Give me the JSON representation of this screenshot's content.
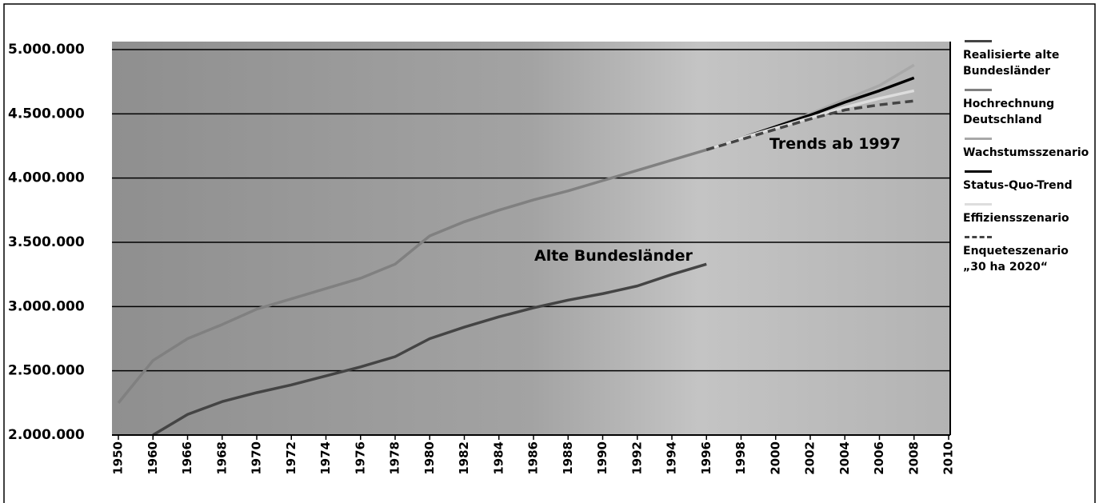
{
  "chart_data": {
    "type": "line",
    "categories": [
      "1950",
      "1960",
      "1966",
      "1968",
      "1970",
      "1972",
      "1974",
      "1976",
      "1978",
      "1980",
      "1982",
      "1984",
      "1986",
      "1988",
      "1990",
      "1992",
      "1994",
      "1996",
      "1998",
      "2000",
      "2002",
      "2004",
      "2006",
      "2008",
      "2010"
    ],
    "series": [
      {
        "name": "Realisierte alte Bundesländer",
        "color": "#444444",
        "line_style": "solid",
        "values": [
          null,
          2000000,
          2160000,
          2260000,
          2330000,
          2390000,
          2460000,
          2530000,
          2610000,
          2750000,
          2840000,
          2920000,
          2990000,
          3050000,
          3100000,
          3160000,
          3250000,
          3330000,
          null,
          null,
          null,
          null,
          null,
          null,
          null
        ]
      },
      {
        "name": "Hochrechnung Deutschland",
        "color": "#808080",
        "line_style": "solid",
        "values": [
          2250000,
          2580000,
          2750000,
          2860000,
          2980000,
          3060000,
          3140000,
          3220000,
          3330000,
          3550000,
          3660000,
          3750000,
          3830000,
          3900000,
          3980000,
          4060000,
          4140000,
          4220000,
          null,
          null,
          null,
          null,
          null,
          null,
          null
        ]
      },
      {
        "name": "Wachstumsszenario",
        "color": "#a8a8a8",
        "line_style": "solid",
        "values": [
          null,
          null,
          null,
          null,
          null,
          null,
          null,
          null,
          null,
          null,
          null,
          null,
          null,
          null,
          null,
          null,
          null,
          4220000,
          4310000,
          4400000,
          4500000,
          4610000,
          4720000,
          4880000,
          null
        ]
      },
      {
        "name": "Status-Quo-Trend",
        "color": "#000000",
        "line_style": "solid",
        "values": [
          null,
          null,
          null,
          null,
          null,
          null,
          null,
          null,
          null,
          null,
          null,
          null,
          null,
          null,
          null,
          null,
          null,
          4220000,
          4310000,
          4400000,
          4490000,
          4590000,
          4680000,
          4780000,
          null
        ]
      },
      {
        "name": "Effiziensszenario",
        "color": "#dddddd",
        "line_style": "solid",
        "values": [
          null,
          null,
          null,
          null,
          null,
          null,
          null,
          null,
          null,
          null,
          null,
          null,
          null,
          null,
          null,
          null,
          null,
          4220000,
          4310000,
          4390000,
          4470000,
          4550000,
          4620000,
          4680000,
          null
        ]
      },
      {
        "name": "Enqueteszenario „30 ha 2020“",
        "color": "#444444",
        "line_style": "dashed",
        "values": [
          null,
          null,
          null,
          null,
          null,
          null,
          null,
          null,
          null,
          null,
          null,
          null,
          null,
          null,
          null,
          null,
          null,
          4220000,
          4300000,
          4380000,
          4460000,
          4530000,
          4570000,
          4600000,
          null
        ]
      }
    ],
    "ylim": [
      2000000,
      5000000
    ],
    "yticks": [
      {
        "value": 2000000,
        "label": "2.000.000"
      },
      {
        "value": 2500000,
        "label": "2.500.000"
      },
      {
        "value": 3000000,
        "label": "3.000.000"
      },
      {
        "value": 3500000,
        "label": "3.500.000"
      },
      {
        "value": 4000000,
        "label": "4.000.000"
      },
      {
        "value": 4500000,
        "label": "4.500.000"
      },
      {
        "value": 5000000,
        "label": "5.000.000"
      }
    ],
    "grid": true,
    "annotations": [
      "Trends ab 1997",
      "Alte Bundesländer"
    ]
  }
}
